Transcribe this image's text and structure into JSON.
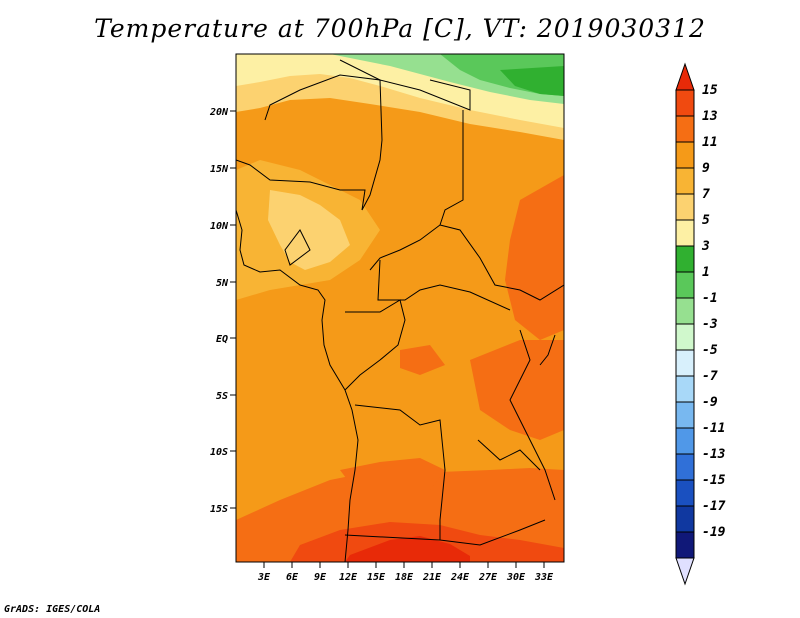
{
  "title": "Temperature at 700hPa [C], VT: 2019030312",
  "credit": "GrADS: IGES/COLA",
  "map": {
    "lat_ticks": [
      "20N",
      "15N",
      "10N",
      "5N",
      "EQ",
      "5S",
      "10S",
      "15S"
    ],
    "lon_ticks": [
      "3E",
      "6E",
      "9E",
      "12E",
      "15E",
      "18E",
      "21E",
      "24E",
      "27E",
      "30E",
      "33E"
    ]
  },
  "colorbar": {
    "labels": [
      "15",
      "13",
      "11",
      "9",
      "7",
      "5",
      "3",
      "1",
      "-1",
      "-3",
      "-5",
      "-7",
      "-9",
      "-11",
      "-13",
      "-15",
      "-17",
      "-19"
    ],
    "colors": [
      "#e82a08",
      "#f04a10",
      "#f56e14",
      "#f59a18",
      "#f8b434",
      "#fcd270",
      "#fdf0a4",
      "#30b030",
      "#5ac85a",
      "#96e090",
      "#d0f8cc",
      "#d8f0fc",
      "#a8d8f8",
      "#78b8f0",
      "#5098e8",
      "#3070d8",
      "#1a50c0",
      "#1038a0",
      "#101878",
      "#e0e0ff"
    ]
  }
}
